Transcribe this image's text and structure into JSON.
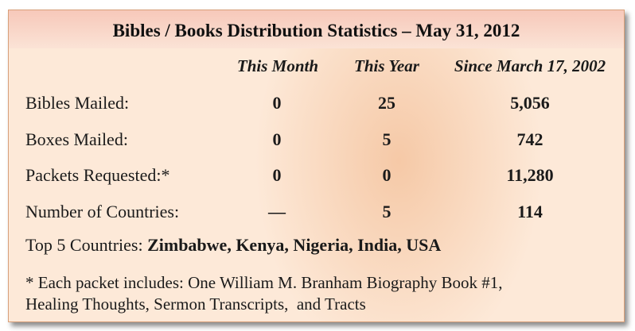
{
  "title": "Bibles / Books Distribution Statistics – May 31, 2012",
  "columns": [
    "This Month",
    "This Year",
    "Since March 17, 2002"
  ],
  "rows": [
    {
      "label": "Bibles Mailed:",
      "this_month": "0",
      "this_year": "25",
      "since": "5,056"
    },
    {
      "label": "Boxes Mailed:",
      "this_month": "0",
      "this_year": "5",
      "since": "742"
    },
    {
      "label": "Packets Requested:*",
      "this_month": "0",
      "this_year": "0",
      "since": "11,280"
    },
    {
      "label": "Number of Countries:",
      "this_month": "—",
      "this_year": "5",
      "since": "114"
    }
  ],
  "top_countries": {
    "label": "Top 5 Countries: ",
    "value": "Zimbabwe, Kenya, Nigeria, India, USA"
  },
  "footnote": {
    "line1": "* Each packet includes: One William M. Branham Biography Book #1,",
    "line2": "Healing Thoughts, Sermon Transcripts,  and Tracts"
  }
}
